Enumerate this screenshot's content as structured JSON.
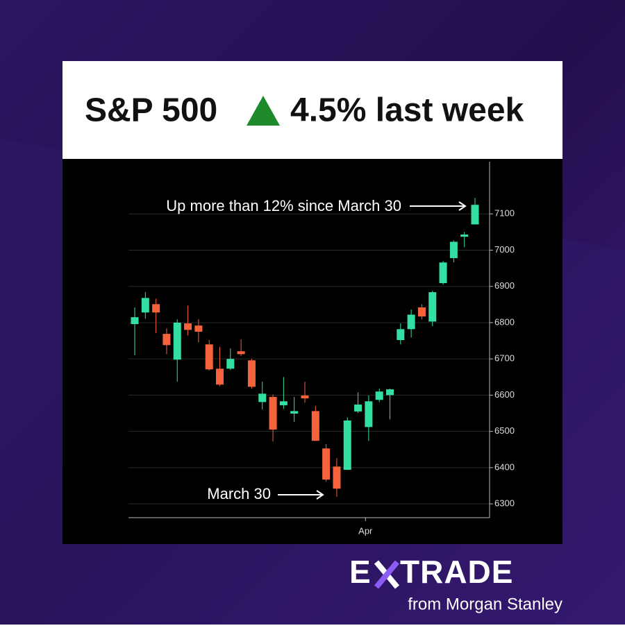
{
  "header": {
    "title": "S&P 500",
    "change": "4.5% last week"
  },
  "brand": {
    "left": "E",
    "right": "TRADE",
    "tagline": "from Morgan Stanley"
  },
  "chart_data": {
    "type": "candlestick",
    "categories": [
      null,
      null,
      null,
      null,
      null,
      null,
      null,
      null,
      null,
      null,
      null,
      null,
      null,
      null,
      null,
      null,
      null,
      null,
      null,
      null,
      null,
      "Apr",
      null,
      null,
      null,
      null,
      null,
      null,
      null,
      null,
      null,
      null,
      null
    ],
    "open": [
      6796,
      6828,
      6851,
      6769,
      6698,
      6798,
      6792,
      6740,
      6673,
      6673,
      6721,
      6696,
      6581,
      6595,
      6572,
      6549,
      6599,
      6556,
      6453,
      6403,
      6394,
      6555,
      6512,
      6587,
      6600,
      6752,
      6782,
      6842,
      6803,
      6909,
      6978,
      7037,
      7071
    ],
    "high": [
      6842,
      6884,
      6866,
      6784,
      6809,
      6847,
      6809,
      6752,
      6733,
      6729,
      6754,
      6700,
      6637,
      6602,
      6650,
      6595,
      6637,
      6570,
      6465,
      6426,
      6539,
      6608,
      6599,
      6618,
      6618,
      6798,
      6836,
      6851,
      6888,
      6970,
      7027,
      7050,
      7144
    ],
    "low": [
      6710,
      6811,
      6771,
      6713,
      6637,
      6765,
      6746,
      6668,
      6625,
      6669,
      6708,
      6618,
      6560,
      6472,
      6562,
      6526,
      6579,
      6474,
      6361,
      6319,
      6394,
      6551,
      6474,
      6581,
      6533,
      6740,
      6759,
      6809,
      6790,
      6905,
      6966,
      7008,
      7071
    ],
    "close": [
      6815,
      6868,
      6828,
      6738,
      6800,
      6780,
      6775,
      6671,
      6629,
      6700,
      6713,
      6623,
      6604,
      6505,
      6583,
      6556,
      6591,
      6474,
      6367,
      6342,
      6530,
      6574,
      6583,
      6610,
      6616,
      6782,
      6822,
      6817,
      6884,
      6966,
      7023,
      7043,
      7125
    ],
    "up_color": "#33e0a1",
    "down_color": "#f5633c",
    "ylim": [
      6262,
      7244
    ],
    "yticks": [
      6300,
      6400,
      6500,
      6600,
      6700,
      6800,
      6900,
      7000,
      7100
    ],
    "grid": true,
    "annotations": [
      "Up more than 12% since March 30",
      "March 30"
    ]
  }
}
